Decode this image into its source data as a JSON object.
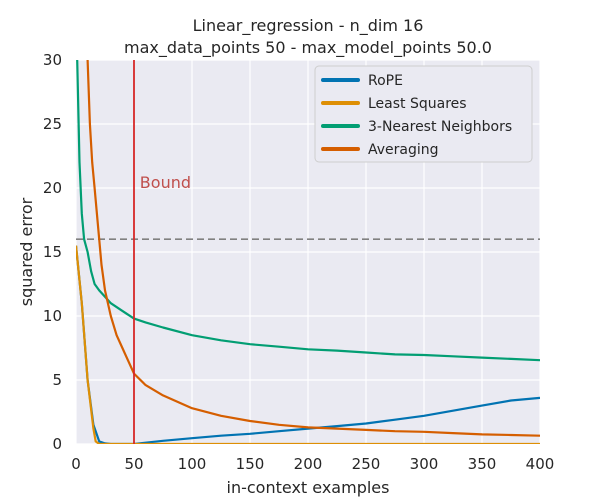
{
  "chart_data": {
    "type": "line",
    "title_line1": "Linear_regression - n_dim 16",
    "title_line2": "max_data_points 50 - max_model_points 50.0",
    "xlabel": "in-context examples",
    "ylabel": "squared error",
    "xlim": [
      0,
      400
    ],
    "ylim": [
      0,
      30
    ],
    "xticks": [
      "0",
      "50",
      "100",
      "150",
      "200",
      "250",
      "300",
      "350",
      "400"
    ],
    "yticks": [
      "0",
      "5",
      "10",
      "15",
      "20",
      "25",
      "30"
    ],
    "grid": true,
    "legend_position": "top-right",
    "hline": {
      "y": 16,
      "color": "#808080",
      "style": "dashed"
    },
    "vline": {
      "x": 50,
      "color": "#d62728"
    },
    "annotation": {
      "text": "Bound",
      "x": 55,
      "y": 20,
      "color": "#c0504d"
    },
    "series": [
      {
        "name": "RoPE",
        "color": "#0173b2",
        "x": [
          0,
          5,
          10,
          15,
          20,
          25,
          30,
          40,
          50,
          60,
          75,
          100,
          125,
          150,
          175,
          200,
          225,
          250,
          275,
          300,
          325,
          350,
          375,
          400
        ],
        "values": [
          15.5,
          11,
          5,
          1.5,
          0.2,
          0.05,
          0.0,
          0.0,
          0.0,
          0.1,
          0.25,
          0.45,
          0.65,
          0.8,
          1.0,
          1.2,
          1.4,
          1.6,
          1.9,
          2.2,
          2.6,
          3.0,
          3.4,
          3.6
        ]
      },
      {
        "name": "Least Squares",
        "color": "#de8f05",
        "x": [
          0,
          5,
          10,
          15,
          17,
          20,
          30,
          50,
          100,
          200,
          300,
          400
        ],
        "values": [
          15.5,
          11,
          5,
          1.2,
          0.2,
          0.0,
          0.0,
          0.0,
          0.0,
          0.0,
          0.0,
          0.0
        ]
      },
      {
        "name": "3-Nearest Neighbors",
        "color": "#029e73",
        "x": [
          1,
          3,
          5,
          7,
          10,
          13,
          16,
          20,
          25,
          30,
          40,
          50,
          60,
          75,
          100,
          125,
          150,
          175,
          200,
          225,
          250,
          275,
          300,
          325,
          350,
          375,
          400
        ],
        "values": [
          30,
          22,
          18,
          16,
          15,
          13.5,
          12.5,
          12,
          11.5,
          11,
          10.4,
          9.8,
          9.5,
          9.1,
          8.5,
          8.1,
          7.8,
          7.6,
          7.4,
          7.3,
          7.15,
          7.0,
          6.95,
          6.85,
          6.75,
          6.65,
          6.55
        ]
      },
      {
        "name": "Averaging",
        "color": "#d55e00",
        "x": [
          10,
          12,
          14,
          16,
          18,
          20,
          22,
          25,
          30,
          35,
          40,
          45,
          50,
          60,
          75,
          100,
          125,
          150,
          175,
          200,
          225,
          250,
          275,
          300,
          325,
          350,
          375,
          400
        ],
        "values": [
          30,
          25,
          22,
          20,
          18,
          16,
          14,
          12,
          10,
          8.5,
          7.5,
          6.5,
          5.5,
          4.6,
          3.8,
          2.8,
          2.2,
          1.8,
          1.5,
          1.3,
          1.2,
          1.1,
          1.0,
          0.95,
          0.85,
          0.75,
          0.7,
          0.65
        ]
      }
    ]
  }
}
